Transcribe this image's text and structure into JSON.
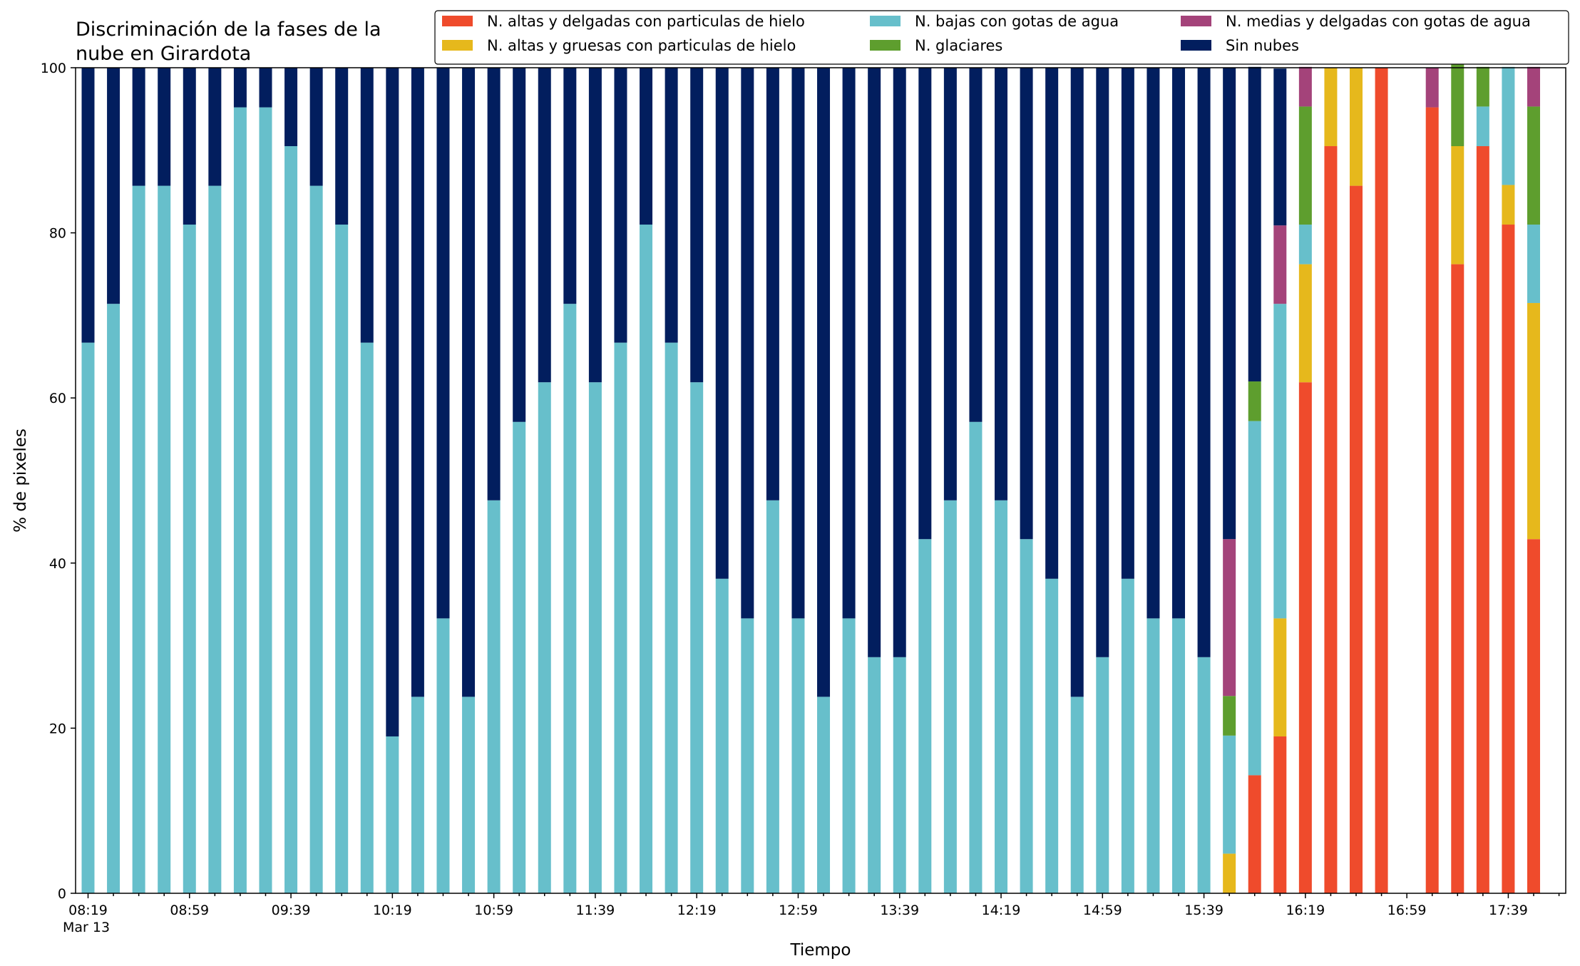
{
  "chart_data": {
    "type": "bar",
    "stacked": true,
    "title": "Discriminación de la fases de la\nnube en Girardota",
    "xlabel": "Tiempo",
    "ylabel": "% de pixeles",
    "ylim": [
      0,
      100
    ],
    "yticks": [
      0,
      20,
      40,
      60,
      80,
      100
    ],
    "grid": false,
    "legend_position": "top-right",
    "x_date_label": "Mar 13",
    "x_tick_labels": [
      {
        "index": 0,
        "label": "08:19"
      },
      {
        "index": 4,
        "label": "08:59"
      },
      {
        "index": 8,
        "label": "09:39"
      },
      {
        "index": 12,
        "label": "10:19"
      },
      {
        "index": 16,
        "label": "10:59"
      },
      {
        "index": 20,
        "label": "11:39"
      },
      {
        "index": 24,
        "label": "12:19"
      },
      {
        "index": 28,
        "label": "12:59"
      },
      {
        "index": 32,
        "label": "13:39"
      },
      {
        "index": 36,
        "label": "14:19"
      },
      {
        "index": 40,
        "label": "14:59"
      },
      {
        "index": 44,
        "label": "15:39"
      },
      {
        "index": 48,
        "label": "16:19"
      },
      {
        "index": 52,
        "label": "16:59"
      },
      {
        "index": 56,
        "label": "17:39"
      }
    ],
    "categories": [
      "08:19",
      "08:29",
      "08:39",
      "08:49",
      "08:59",
      "09:09",
      "09:19",
      "09:29",
      "09:39",
      "09:49",
      "09:59",
      "10:09",
      "10:19",
      "10:29",
      "10:39",
      "10:49",
      "10:59",
      "11:09",
      "11:19",
      "11:29",
      "11:39",
      "11:49",
      "11:59",
      "12:09",
      "12:19",
      "12:29",
      "12:39",
      "12:49",
      "12:59",
      "13:09",
      "13:19",
      "13:29",
      "13:39",
      "13:49",
      "13:59",
      "14:09",
      "14:19",
      "14:29",
      "14:39",
      "14:49",
      "14:59",
      "15:09",
      "15:19",
      "15:29",
      "15:39",
      "15:49",
      "15:59",
      "16:09",
      "16:19",
      "16:29",
      "16:39",
      "16:49",
      "16:59",
      "17:09",
      "17:19",
      "17:29",
      "17:39",
      "17:49"
    ],
    "series": [
      {
        "name": "N. altas y delgadas con particulas de hielo",
        "color": "#ef4b2c",
        "values": [
          0,
          0,
          0,
          0,
          0,
          0,
          0,
          0,
          0,
          0,
          0,
          0,
          0,
          0,
          0,
          0,
          0,
          0,
          0,
          0,
          0,
          0,
          0,
          0,
          0,
          0,
          0,
          0,
          0,
          0,
          0,
          0,
          0,
          0,
          0,
          0,
          0,
          0,
          0,
          0,
          0,
          0,
          0,
          0,
          0,
          0,
          14.3,
          19,
          61.9,
          90.5,
          85.7,
          100,
          0,
          95.2,
          76.2,
          90.5,
          81,
          42.9
        ]
      },
      {
        "name": "N. altas y gruesas con particulas de hielo",
        "color": "#e6b81c",
        "values": [
          0,
          0,
          0,
          0,
          0,
          0,
          0,
          0,
          0,
          0,
          0,
          0,
          0,
          0,
          0,
          0,
          0,
          0,
          0,
          0,
          0,
          0,
          0,
          0,
          0,
          0,
          0,
          0,
          0,
          0,
          0,
          0,
          0,
          0,
          0,
          0,
          0,
          0,
          0,
          0,
          0,
          0,
          0,
          0,
          0,
          4.8,
          0,
          14.3,
          14.3,
          9.5,
          14.3,
          0,
          0,
          0,
          14.3,
          0,
          4.8,
          28.6
        ]
      },
      {
        "name": "N. bajas con gotas de agua",
        "color": "#67bfcb",
        "values": [
          66.7,
          71.4,
          85.7,
          85.7,
          81,
          85.7,
          95.2,
          95.2,
          90.5,
          85.7,
          81,
          66.7,
          19,
          23.8,
          33.3,
          23.8,
          47.6,
          57.1,
          61.9,
          71.4,
          61.9,
          66.7,
          81,
          66.7,
          61.9,
          38.1,
          33.3,
          47.6,
          33.3,
          23.8,
          33.3,
          28.6,
          28.6,
          42.9,
          47.6,
          57.1,
          47.6,
          42.9,
          38.1,
          23.8,
          28.6,
          38.1,
          33.3,
          33.3,
          28.6,
          14.3,
          42.9,
          38.1,
          4.8,
          0,
          0,
          0,
          0,
          0,
          0,
          4.8,
          14.3,
          9.5
        ]
      },
      {
        "name": "N. glaciares",
        "color": "#5e9e2e",
        "values": [
          0,
          0,
          0,
          0,
          0,
          0,
          0,
          0,
          0,
          0,
          0,
          0,
          0,
          0,
          0,
          0,
          0,
          0,
          0,
          0,
          0,
          0,
          0,
          0,
          0,
          0,
          0,
          0,
          0,
          0,
          0,
          0,
          0,
          0,
          0,
          0,
          0,
          0,
          0,
          0,
          0,
          0,
          0,
          0,
          0,
          4.8,
          4.8,
          0,
          14.3,
          0,
          0,
          0,
          0,
          0,
          14.3,
          4.8,
          0,
          14.3
        ]
      },
      {
        "name": "N. medias y delgadas con gotas de agua",
        "color": "#a4437a",
        "values": [
          0,
          0,
          0,
          0,
          0,
          0,
          0,
          0,
          0,
          0,
          0,
          0,
          0,
          0,
          0,
          0,
          0,
          0,
          0,
          0,
          0,
          0,
          0,
          0,
          0,
          0,
          0,
          0,
          0,
          0,
          0,
          0,
          0,
          0,
          0,
          0,
          0,
          0,
          0,
          0,
          0,
          0,
          0,
          0,
          0,
          19,
          0,
          9.5,
          4.8,
          0,
          0,
          0,
          0,
          4.8,
          0,
          0,
          0,
          4.8
        ]
      },
      {
        "name": "Sin nubes",
        "color": "#021e5e",
        "values": [
          33.3,
          28.6,
          14.3,
          14.3,
          19,
          14.3,
          4.8,
          4.8,
          9.5,
          14.3,
          19,
          33.3,
          81,
          76.2,
          66.7,
          76.2,
          52.4,
          42.9,
          38.1,
          28.6,
          38.1,
          33.3,
          19,
          33.3,
          38.1,
          61.9,
          66.7,
          52.4,
          66.7,
          76.2,
          66.7,
          71.4,
          71.4,
          57.1,
          52.4,
          42.9,
          52.4,
          57.1,
          61.9,
          76.2,
          71.4,
          61.9,
          66.7,
          66.7,
          71.4,
          57.1,
          38.1,
          19,
          0,
          0,
          0,
          0,
          0,
          0,
          0,
          0,
          0,
          0
        ]
      }
    ]
  }
}
